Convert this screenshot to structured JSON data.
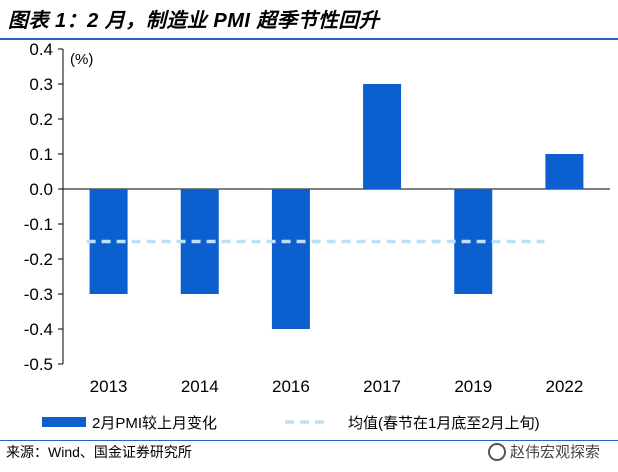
{
  "header": {
    "title": "图表 1：2 月，制造业 PMI 超季节性回升"
  },
  "chart_data": {
    "type": "bar",
    "categories": [
      "2013",
      "2014",
      "2016",
      "2017",
      "2019",
      "2022"
    ],
    "series": [
      {
        "name": "2月PMI较上月变化",
        "values": [
          -0.3,
          -0.3,
          -0.4,
          0.3,
          -0.3,
          0.1
        ],
        "color": "#0b5fce"
      }
    ],
    "reference_line": {
      "name": "均值(春节在1月底至2月上旬)",
      "value": -0.15,
      "color": "#bde0f6",
      "style": "dashed"
    },
    "ylabel": "(%)",
    "ylim": [
      -0.5,
      0.4
    ],
    "yticks": [
      "0.4",
      "0.3",
      "0.2",
      "0.1",
      "0.0",
      "-0.1",
      "-0.2",
      "-0.3",
      "-0.4",
      "-0.5"
    ],
    "legend_position": "bottom",
    "grid": false
  },
  "footer": {
    "source": "来源：Wind、国金证券研究所",
    "watermark": "赵伟宏观探索"
  }
}
